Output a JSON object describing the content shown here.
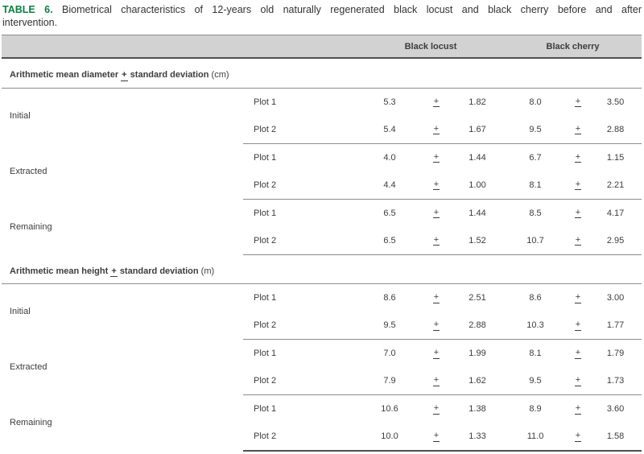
{
  "caption": {
    "label": "TABLE 6.",
    "line1": "Biometrical characteristics of 12-years old naturally regenerated black locust and black cherry before and after",
    "line2": "intervention."
  },
  "table": {
    "col_headers": {
      "locust": "Black locust",
      "cherry": "Black cherry"
    },
    "pm": "+",
    "sections": [
      {
        "title_pre": "Arithmetic mean diameter",
        "title_post": "standard deviation",
        "title_unit": "(cm)",
        "stages": [
          {
            "name": "Initial",
            "rows": [
              {
                "plot": "Plot 1",
                "l_mean": "5.3",
                "l_sd": "1.82",
                "c_mean": "8.0",
                "c_sd": "3.50"
              },
              {
                "plot": "Plot 2",
                "l_mean": "5.4",
                "l_sd": "1.67",
                "c_mean": "9.5",
                "c_sd": "2.88"
              }
            ]
          },
          {
            "name": "Extracted",
            "rows": [
              {
                "plot": "Plot 1",
                "l_mean": "4.0",
                "l_sd": "1.44",
                "c_mean": "6.7",
                "c_sd": "1.15"
              },
              {
                "plot": "Plot 2",
                "l_mean": "4.4",
                "l_sd": "1.00",
                "c_mean": "8.1",
                "c_sd": "2.21"
              }
            ]
          },
          {
            "name": "Remaining",
            "rows": [
              {
                "plot": "Plot 1",
                "l_mean": "6.5",
                "l_sd": "1.44",
                "c_mean": "8.5",
                "c_sd": "4.17"
              },
              {
                "plot": "Plot 2",
                "l_mean": "6.5",
                "l_sd": "1.52",
                "c_mean": "10.7",
                "c_sd": "2.95"
              }
            ]
          }
        ]
      },
      {
        "title_pre": "Arithmetic mean height",
        "title_post": "standard deviation",
        "title_unit": "(m)",
        "stages": [
          {
            "name": "Initial",
            "rows": [
              {
                "plot": "Plot 1",
                "l_mean": "8.6",
                "l_sd": "2.51",
                "c_mean": "8.6",
                "c_sd": "3.00"
              },
              {
                "plot": "Plot 2",
                "l_mean": "9.5",
                "l_sd": "2.88",
                "c_mean": "10.3",
                "c_sd": "1.77"
              }
            ]
          },
          {
            "name": "Extracted",
            "rows": [
              {
                "plot": "Plot 1",
                "l_mean": "7.0",
                "l_sd": "1.99",
                "c_mean": "8.1",
                "c_sd": "1.79"
              },
              {
                "plot": "Plot 2",
                "l_mean": "7.9",
                "l_sd": "1.62",
                "c_mean": "9.5",
                "c_sd": "1.73"
              }
            ]
          },
          {
            "name": "Remaining",
            "rows": [
              {
                "plot": "Plot 1",
                "l_mean": "10.6",
                "l_sd": "1.38",
                "c_mean": "8.9",
                "c_sd": "3.60"
              },
              {
                "plot": "Plot 2",
                "l_mean": "10.0",
                "l_sd": "1.33",
                "c_mean": "11.0",
                "c_sd": "1.58"
              }
            ]
          }
        ]
      }
    ]
  },
  "colors": {
    "accent_green": "#0a8041",
    "header_bg": "#d2d2d2",
    "text": "#3c3c3c",
    "thin_rule": "#8c8c8c",
    "thick_rule": "#4f4f4f"
  }
}
